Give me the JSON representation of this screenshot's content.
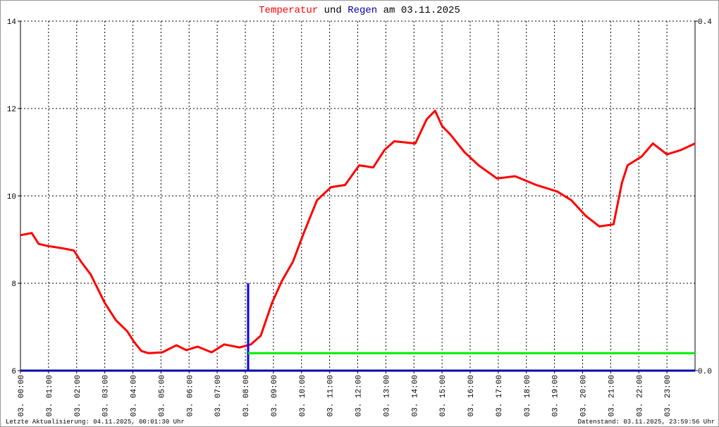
{
  "chart_data": {
    "type": "line",
    "title_words": [
      "und",
      "am 03.11.2025"
    ],
    "xlim": [
      0,
      24
    ],
    "xticks": [
      {
        "value": 0,
        "label": "03. 00:00"
      },
      {
        "value": 1,
        "label": "03. 01:00"
      },
      {
        "value": 2,
        "label": "03. 02:00"
      },
      {
        "value": 3,
        "label": "03. 03:00"
      },
      {
        "value": 4,
        "label": "03. 04:00"
      },
      {
        "value": 5,
        "label": "03. 05:00"
      },
      {
        "value": 6,
        "label": "03. 06:00"
      },
      {
        "value": 7,
        "label": "03. 07:00"
      },
      {
        "value": 8,
        "label": "03. 08:00"
      },
      {
        "value": 9,
        "label": "03. 09:00"
      },
      {
        "value": 10,
        "label": "03. 10:00"
      },
      {
        "value": 11,
        "label": "03. 11:00"
      },
      {
        "value": 12,
        "label": "03. 12:00"
      },
      {
        "value": 13,
        "label": "03. 13:00"
      },
      {
        "value": 14,
        "label": "03. 14:00"
      },
      {
        "value": 15,
        "label": "03. 15:00"
      },
      {
        "value": 16,
        "label": "03. 16:00"
      },
      {
        "value": 17,
        "label": "03. 17:00"
      },
      {
        "value": 18,
        "label": "03. 18:00"
      },
      {
        "value": 19,
        "label": "03. 19:00"
      },
      {
        "value": 20,
        "label": "03. 20:00"
      },
      {
        "value": 21,
        "label": "03. 21:00"
      },
      {
        "value": 22,
        "label": "03. 22:00"
      },
      {
        "value": 23,
        "label": "03. 23:00"
      }
    ],
    "ylim": [
      6,
      14
    ],
    "yticks": [
      6,
      8,
      10,
      12,
      14
    ],
    "y2lim": [
      0,
      0.4
    ],
    "y2ticks": [
      {
        "value": 0,
        "label": "0.0"
      },
      {
        "value": 0.4,
        "label": "0.4"
      }
    ],
    "grid": true,
    "series": [
      {
        "name": "Temperatur",
        "color": "#ff0000",
        "style": "line",
        "x": [
          0,
          0.4,
          0.65,
          1.0,
          1.5,
          1.9,
          2.15,
          2.5,
          3.0,
          3.4,
          3.8,
          4.05,
          4.3,
          4.55,
          5.05,
          5.55,
          5.9,
          6.3,
          6.8,
          7.25,
          7.8,
          8.2,
          8.55,
          8.95,
          9.3,
          9.7,
          10.05,
          10.55,
          11.05,
          11.55,
          12.05,
          12.55,
          12.95,
          13.3,
          14.05,
          14.45,
          14.75,
          15.0,
          15.3,
          15.8,
          16.3,
          16.95,
          17.6,
          18.35,
          19.1,
          19.6,
          20.1,
          20.6,
          21.1,
          21.4,
          21.6,
          22.1,
          22.5,
          23.0,
          23.5,
          24.0
        ],
        "values": [
          9.1,
          9.15,
          8.9,
          8.85,
          8.8,
          8.75,
          8.5,
          8.2,
          7.55,
          7.15,
          6.9,
          6.65,
          6.45,
          6.4,
          6.42,
          6.58,
          6.47,
          6.55,
          6.42,
          6.6,
          6.53,
          6.6,
          6.8,
          7.55,
          8.05,
          8.5,
          9.1,
          9.9,
          10.2,
          10.25,
          10.7,
          10.65,
          11.05,
          11.25,
          11.2,
          11.75,
          11.95,
          11.6,
          11.4,
          11.0,
          10.7,
          10.4,
          10.45,
          10.25,
          10.1,
          9.9,
          9.55,
          9.3,
          9.35,
          10.3,
          10.7,
          10.9,
          11.2,
          10.95,
          11.05,
          11.2
        ]
      },
      {
        "name": "Regen",
        "color": "#0000ff",
        "style": "bar",
        "axis": "y2",
        "x": [
          8.1
        ],
        "values": [
          0.1
        ]
      },
      {
        "color": "#00ee00",
        "style": "line",
        "axis": "y2",
        "x": [
          8.1,
          24
        ],
        "values": [
          0.02,
          0.02
        ]
      }
    ],
    "footer": {
      "left": "Letzte Aktualisierung: 04.11.2025, 00:01:30 Uhr",
      "right": "Datenstand: 03.11.2025, 23:59:56 Uhr"
    }
  }
}
